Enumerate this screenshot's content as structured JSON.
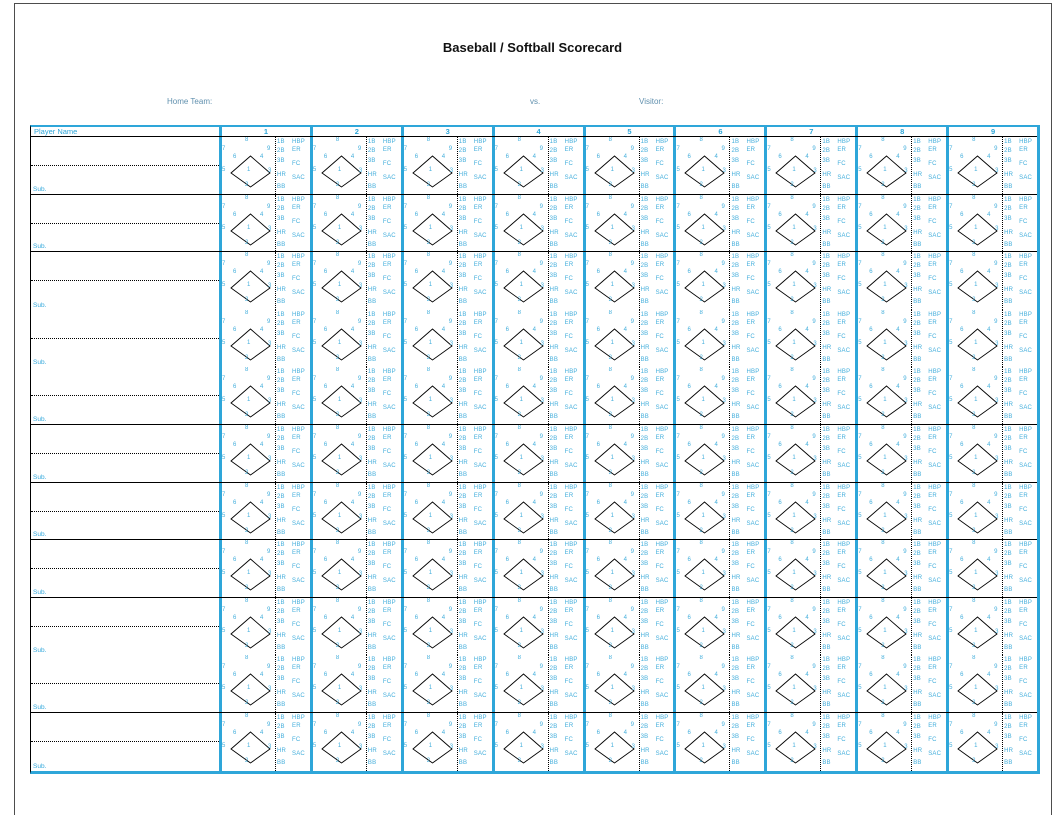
{
  "page": {
    "title": "Baseball / Softball Scorecard"
  },
  "matchup": {
    "home_team_label": "Home Team:",
    "vs_label": "vs.",
    "visitor_label": "Visitor:"
  },
  "scorecard": {
    "player_name_header": "Player Name",
    "inning_headers": [
      "1",
      "2",
      "3",
      "4",
      "5",
      "6",
      "7",
      "8",
      "9"
    ],
    "sub_label": "Sub.",
    "player_rows": 11,
    "solid_separator_after_rows": [
      1,
      2,
      5,
      6,
      7,
      8,
      10
    ],
    "cell": {
      "diamond_position_numbers": [
        "8",
        "7",
        "9",
        "6",
        "4",
        "5",
        "1",
        "3",
        "2"
      ],
      "hit_codes": [
        "1B",
        "2B",
        "3B",
        "HR",
        "BB"
      ],
      "result_codes": [
        "HBP",
        "ER",
        "FC",
        "SAC"
      ]
    }
  },
  "colors": {
    "accent_cyan": "#2EA6D9",
    "cell_text_cyan": "#45AFDC",
    "label_steel_blue": "#6090AE",
    "line_black": "#000000",
    "title_black": "#111111",
    "page_border_gray": "#4d4d4d"
  }
}
